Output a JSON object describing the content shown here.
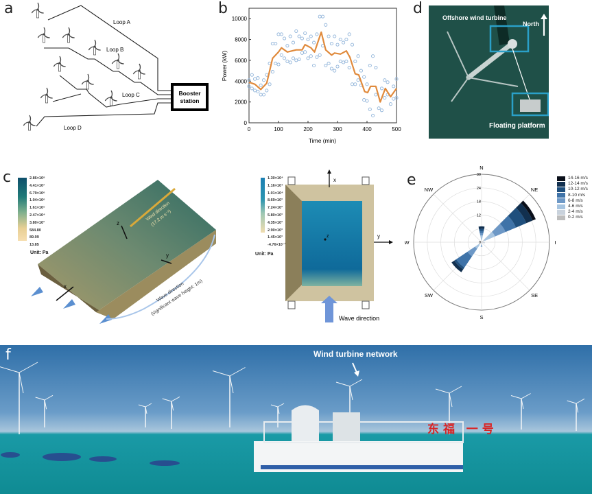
{
  "panels": {
    "a": "a",
    "b": "b",
    "c": "c",
    "d": "d",
    "e": "e",
    "f": "f"
  },
  "panel_a": {
    "loops": [
      "Loop A",
      "Loop B",
      "Loop C",
      "Loop D"
    ],
    "booster": [
      "Booster",
      "station"
    ]
  },
  "panel_d": {
    "turbine_label": "Offshore wind turbine",
    "north_label": "North",
    "platform_label": "Floating platform",
    "colors": {
      "sea": "#1f5048",
      "box": "#2aa0c8"
    }
  },
  "panel_c": {
    "left_colorbar": [
      "2.86×10⁸",
      "4.41×10⁷",
      "6.79×10⁶",
      "1.04×10⁶",
      "1.61×10⁵",
      "2.47×10⁴",
      "3.80×10³",
      "584.80",
      "89.99",
      "13.85"
    ],
    "left_unit": "Unit: Pa",
    "wind_label": [
      "Wind direction",
      "(17.2 m s⁻¹)"
    ],
    "wave_label": [
      "Wave direction",
      "(significant wave height: 1m)"
    ],
    "axes": {
      "x": "x",
      "y": "y",
      "z": "z"
    },
    "right_colorbar": [
      "1.30×10⁴",
      "1.16×10⁴",
      "1.01×10⁴",
      "8.69×10³",
      "7.24×10³",
      "5.80×10³",
      "4.35×10³",
      "2.90×10³",
      "1.45×10³",
      "-4.76×10⁻¹²"
    ],
    "right_unit": "Unit: Pa",
    "right_wave_label": "Wave direction"
  },
  "panel_f": {
    "label": "Wind turbine network",
    "ship_name": "东福 一号"
  },
  "chart_data": [
    {
      "type": "scatter+line",
      "xlabel": "Time (min)",
      "ylabel": "Power (kW)",
      "xlim": [
        0,
        500
      ],
      "ylim": [
        0,
        11000
      ],
      "xticks": [
        0,
        100,
        200,
        300,
        400,
        500
      ],
      "yticks": [
        0,
        2000,
        4000,
        6000,
        8000,
        10000
      ],
      "colors": {
        "scatter": "#8fb3d9",
        "line": "#e08a3c"
      },
      "scatter": [
        [
          0,
          4100
        ],
        [
          0,
          3500
        ],
        [
          10,
          4600
        ],
        [
          10,
          3300
        ],
        [
          20,
          4200
        ],
        [
          20,
          3100
        ],
        [
          30,
          4300
        ],
        [
          30,
          3000
        ],
        [
          40,
          3600
        ],
        [
          40,
          2700
        ],
        [
          50,
          4100
        ],
        [
          50,
          2700
        ],
        [
          60,
          4600
        ],
        [
          60,
          3100
        ],
        [
          70,
          3700
        ],
        [
          70,
          5700
        ],
        [
          80,
          4900
        ],
        [
          80,
          7600
        ],
        [
          90,
          7600
        ],
        [
          90,
          5700
        ],
        [
          100,
          8500
        ],
        [
          100,
          5600
        ],
        [
          110,
          8500
        ],
        [
          110,
          6500
        ],
        [
          120,
          8100
        ],
        [
          120,
          6200
        ],
        [
          130,
          7400
        ],
        [
          130,
          5900
        ],
        [
          140,
          8300
        ],
        [
          140,
          5800
        ],
        [
          150,
          7700
        ],
        [
          150,
          6200
        ],
        [
          160,
          8800
        ],
        [
          160,
          6000
        ],
        [
          170,
          8300
        ],
        [
          170,
          6100
        ],
        [
          180,
          8100
        ],
        [
          180,
          6700
        ],
        [
          190,
          8600
        ],
        [
          190,
          6800
        ],
        [
          200,
          8000
        ],
        [
          200,
          6200
        ],
        [
          210,
          8300
        ],
        [
          210,
          6400
        ],
        [
          220,
          7700
        ],
        [
          220,
          5500
        ],
        [
          230,
          8500
        ],
        [
          230,
          6300
        ],
        [
          240,
          10200
        ],
        [
          240,
          6500
        ],
        [
          250,
          10200
        ],
        [
          250,
          7400
        ],
        [
          260,
          9400
        ],
        [
          260,
          5500
        ],
        [
          270,
          8300
        ],
        [
          270,
          5700
        ],
        [
          280,
          7600
        ],
        [
          280,
          5200
        ],
        [
          290,
          8300
        ],
        [
          290,
          5000
        ],
        [
          300,
          7500
        ],
        [
          300,
          5400
        ],
        [
          310,
          8000
        ],
        [
          310,
          5900
        ],
        [
          320,
          7700
        ],
        [
          320,
          5800
        ],
        [
          330,
          8000
        ],
        [
          330,
          5900
        ],
        [
          340,
          8500
        ],
        [
          340,
          5300
        ],
        [
          350,
          7500
        ],
        [
          350,
          3700
        ],
        [
          360,
          5900
        ],
        [
          360,
          3700
        ],
        [
          370,
          6400
        ],
        [
          370,
          4100
        ],
        [
          380,
          5000
        ],
        [
          380,
          3600
        ],
        [
          390,
          4400
        ],
        [
          390,
          2200
        ],
        [
          400,
          3700
        ],
        [
          400,
          2100
        ],
        [
          410,
          5500
        ],
        [
          410,
          1300
        ],
        [
          420,
          6400
        ],
        [
          420,
          700
        ],
        [
          430,
          5300
        ],
        [
          430,
          2700
        ],
        [
          440,
          1400
        ],
        [
          450,
          3300
        ],
        [
          450,
          1200
        ],
        [
          460,
          4100
        ],
        [
          460,
          2400
        ],
        [
          470,
          3900
        ],
        [
          470,
          2700
        ],
        [
          480,
          1800
        ],
        [
          490,
          3500
        ],
        [
          490,
          2300
        ],
        [
          500,
          4200
        ],
        [
          500,
          2400
        ]
      ],
      "line": [
        [
          0,
          3900
        ],
        [
          20,
          3700
        ],
        [
          40,
          3200
        ],
        [
          60,
          3800
        ],
        [
          80,
          6200
        ],
        [
          100,
          6800
        ],
        [
          110,
          7200
        ],
        [
          130,
          6800
        ],
        [
          160,
          7000
        ],
        [
          180,
          7000
        ],
        [
          190,
          7500
        ],
        [
          210,
          7200
        ],
        [
          222,
          6800
        ],
        [
          245,
          8700
        ],
        [
          260,
          7000
        ],
        [
          280,
          6500
        ],
        [
          290,
          6700
        ],
        [
          310,
          6600
        ],
        [
          330,
          6900
        ],
        [
          342,
          6300
        ],
        [
          360,
          4700
        ],
        [
          372,
          4600
        ],
        [
          392,
          3000
        ],
        [
          402,
          2900
        ],
        [
          412,
          3500
        ],
        [
          430,
          3500
        ],
        [
          445,
          2000
        ],
        [
          462,
          3300
        ],
        [
          480,
          2500
        ],
        [
          500,
          3300
        ]
      ]
    },
    {
      "type": "wind-rose",
      "directions": [
        "N",
        "NE",
        "E",
        "SE",
        "S",
        "SW",
        "W",
        "NW"
      ],
      "rlim": [
        0,
        30
      ],
      "rticks": [
        0,
        6,
        12,
        18,
        24,
        30
      ],
      "legend": [
        "14-16 m/s",
        "12-14 m/s",
        "10-12 m/s",
        "8-10 m/s",
        "6-8 m/s",
        "4-6 m/s",
        "2-4 m/s",
        "0-2 m/s"
      ],
      "legend_colors": [
        "#0a0f1a",
        "#12304f",
        "#1f4f7d",
        "#3f73a8",
        "#6d98c6",
        "#a6c4e0",
        "#c9d2dc",
        "#bdbdbd"
      ],
      "speed_bins": [
        "0-2 m/s",
        "2-4 m/s",
        "4-6 m/s",
        "6-8 m/s",
        "8-10 m/s",
        "10-12 m/s",
        "12-14 m/s",
        "14-16 m/s"
      ],
      "sectors": [
        {
          "direction_deg": 56,
          "frequency": [
            0.5,
            1,
            5,
            5,
            5,
            5,
            3,
            1.5
          ]
        },
        {
          "direction_deg": 225,
          "frequency": [
            0.5,
            1,
            2,
            4,
            6,
            1,
            1.5,
            0
          ]
        },
        {
          "direction_deg": 0,
          "frequency": [
            0.5,
            0.5,
            2,
            1,
            1,
            1,
            1,
            0
          ]
        },
        {
          "direction_deg": 180,
          "frequency": [
            0.5,
            0.5,
            0.5,
            0.5,
            0,
            0,
            0,
            0
          ]
        },
        {
          "direction_deg": 100,
          "frequency": [
            0.5,
            1,
            0,
            0,
            0,
            0,
            0,
            0
          ]
        }
      ]
    }
  ]
}
